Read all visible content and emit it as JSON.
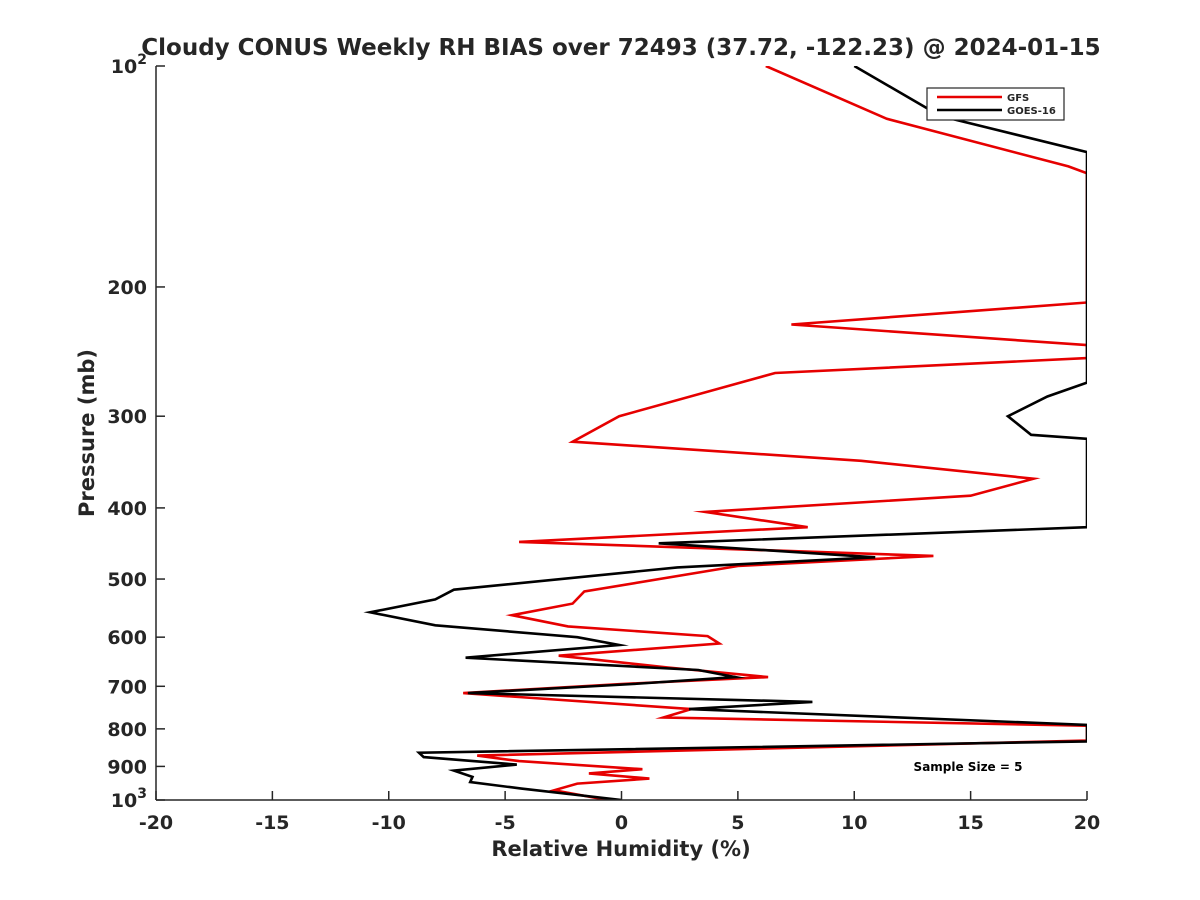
{
  "chart_data": {
    "type": "line",
    "title": "Cloudy CONUS Weekly RH BIAS over 72493 (37.72, -122.23) @ 2024-01-15",
    "xlabel": "Relative Humidity (%)",
    "ylabel": "Pressure (mb)",
    "xlim": [
      -20,
      20
    ],
    "ylim": [
      100,
      1000
    ],
    "y_scale": "log",
    "y_reversed": true,
    "x_ticks": [
      "-20",
      "-15",
      "-10",
      "-5",
      "0",
      "5",
      "10",
      "15",
      "20"
    ],
    "y_ticks": [
      {
        "value": 100,
        "base": "10",
        "exp": "2"
      },
      {
        "value": 200,
        "label": "200"
      },
      {
        "value": 300,
        "label": "300"
      },
      {
        "value": 400,
        "label": "400"
      },
      {
        "value": 500,
        "label": "500"
      },
      {
        "value": 600,
        "label": "600"
      },
      {
        "value": 700,
        "label": "700"
      },
      {
        "value": 800,
        "label": "800"
      },
      {
        "value": 900,
        "label": "900"
      },
      {
        "value": 1000,
        "base": "10",
        "exp": "3"
      }
    ],
    "grid": false,
    "legend_position": "top-right",
    "annotation": "Sample Size = 5",
    "series": [
      {
        "name": "GFS",
        "color": "#e60000",
        "points": [
          [
            6.2,
            100
          ],
          [
            11.4,
            118
          ],
          [
            19.2,
            137
          ],
          [
            20,
            140
          ],
          [
            20,
            148
          ],
          [
            20,
            210
          ],
          [
            7.3,
            225
          ],
          [
            20,
            240
          ],
          [
            20,
            250
          ],
          [
            6.6,
            262
          ],
          [
            -0.1,
            300
          ],
          [
            -2.1,
            325
          ],
          [
            10.3,
            345
          ],
          [
            17.7,
            365
          ],
          [
            15.0,
            385
          ],
          [
            3.6,
            405
          ],
          [
            8.0,
            425
          ],
          [
            -4.4,
            445
          ],
          [
            13.4,
            465
          ],
          [
            5.0,
            480
          ],
          [
            -1.6,
            520
          ],
          [
            -2.1,
            540
          ],
          [
            -4.7,
            560
          ],
          [
            -2.3,
            580
          ],
          [
            3.7,
            598
          ],
          [
            4.2,
            612
          ],
          [
            -2.7,
            636
          ],
          [
            2.0,
            660
          ],
          [
            6.3,
            680
          ],
          [
            0.0,
            695
          ],
          [
            -6.8,
            715
          ],
          [
            3.0,
            752
          ],
          [
            1.8,
            772
          ],
          [
            20,
            792
          ],
          [
            20,
            800
          ],
          [
            20,
            830
          ],
          [
            -6.2,
            870
          ],
          [
            -4.4,
            885
          ],
          [
            0.9,
            908
          ],
          [
            -1.4,
            920
          ],
          [
            1.2,
            935
          ],
          [
            -1.9,
            950
          ],
          [
            -2.9,
            970
          ],
          [
            -0.6,
            1000
          ]
        ]
      },
      {
        "name": "GOES-16",
        "color": "#000000",
        "points": [
          [
            10.0,
            100
          ],
          [
            13.7,
            117
          ],
          [
            20,
            131
          ],
          [
            20,
            140
          ],
          [
            20,
            148
          ],
          [
            20,
            210
          ],
          [
            20,
            250
          ],
          [
            20,
            270
          ],
          [
            18.3,
            282
          ],
          [
            16.6,
            300
          ],
          [
            17.6,
            318
          ],
          [
            20,
            322
          ],
          [
            20,
            330
          ],
          [
            20,
            425
          ],
          [
            1.6,
            447
          ],
          [
            10.9,
            467
          ],
          [
            2.4,
            482
          ],
          [
            -7.2,
            517
          ],
          [
            -8.0,
            533
          ],
          [
            -10.8,
            555
          ],
          [
            -8.0,
            578
          ],
          [
            -1.9,
            600
          ],
          [
            -0.1,
            615
          ],
          [
            -6.7,
            640
          ],
          [
            3.3,
            665
          ],
          [
            4.9,
            680
          ],
          [
            0.5,
            695
          ],
          [
            -6.6,
            715
          ],
          [
            8.2,
            735
          ],
          [
            2.9,
            752
          ],
          [
            20,
            790
          ],
          [
            20,
            800
          ],
          [
            20,
            832
          ],
          [
            -8.7,
            862
          ],
          [
            -8.5,
            874
          ],
          [
            -4.5,
            895
          ],
          [
            -7.2,
            912
          ],
          [
            -6.4,
            930
          ],
          [
            -6.5,
            945
          ],
          [
            -4.3,
            965
          ],
          [
            0.0,
            1000
          ]
        ]
      }
    ]
  }
}
